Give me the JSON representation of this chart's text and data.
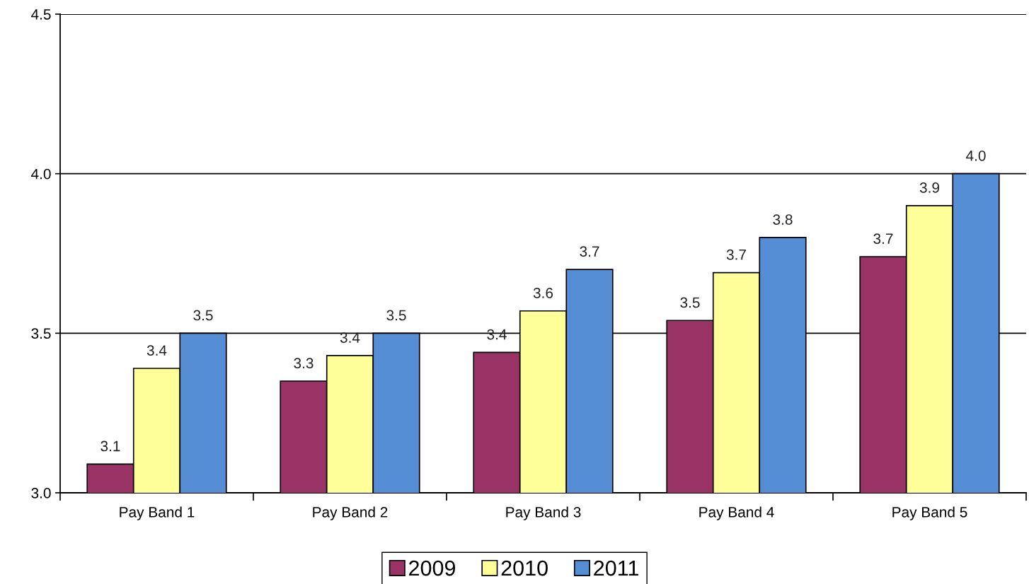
{
  "chart_data": {
    "type": "bar",
    "categories": [
      "Pay Band 1",
      "Pay Band 2",
      "Pay Band 3",
      "Pay Band 4",
      "Pay Band 5"
    ],
    "series": [
      {
        "name": "2009",
        "color": "#993366",
        "values": [
          3.09,
          3.35,
          3.44,
          3.54,
          3.74
        ],
        "value_labels": [
          "3.1",
          "3.3",
          "3.4",
          "3.5",
          "3.7"
        ]
      },
      {
        "name": "2010",
        "color": "#ffff99",
        "values": [
          3.39,
          3.43,
          3.57,
          3.69,
          3.9
        ],
        "value_labels": [
          "3.4",
          "3.4",
          "3.6",
          "3.7",
          "3.9"
        ]
      },
      {
        "name": "2011",
        "color": "#558ed5",
        "values": [
          3.5,
          3.5,
          3.7,
          3.8,
          4.0
        ],
        "value_labels": [
          "3.5",
          "3.5",
          "3.7",
          "3.8",
          "4.0"
        ]
      }
    ],
    "ylim": [
      3.0,
      4.5
    ],
    "yticks": [
      {
        "value": 3.0,
        "label": "3.0"
      },
      {
        "value": 3.5,
        "label": "3.5"
      },
      {
        "value": 4.0,
        "label": "4.0"
      },
      {
        "value": 4.5,
        "label": "4.5"
      }
    ],
    "grid": "y",
    "legend": "bottom"
  }
}
